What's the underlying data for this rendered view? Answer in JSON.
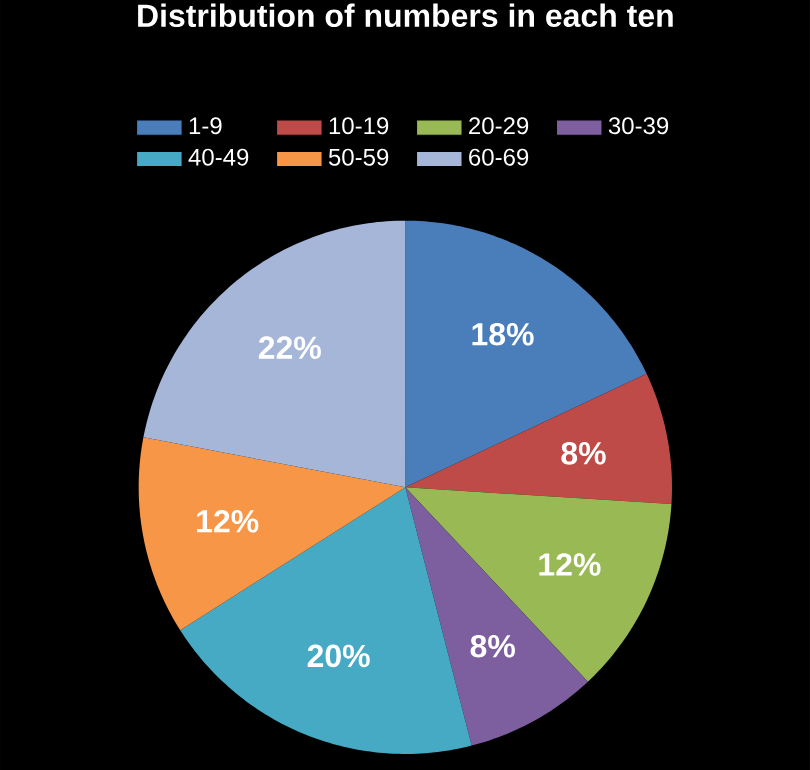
{
  "chart_data": {
    "type": "pie",
    "title": "Distribution of numbers in each ten",
    "categories": [
      "1-9",
      "10-19",
      "20-29",
      "30-39",
      "40-49",
      "50-59",
      "60-69"
    ],
    "values": [
      18,
      8,
      12,
      8,
      20,
      12,
      22
    ],
    "value_labels": [
      "18%",
      "8%",
      "12%",
      "8%",
      "20%",
      "12%",
      "22%"
    ],
    "colors": [
      "#4a7ebb",
      "#be4b48",
      "#98b954",
      "#7d5fa0",
      "#46aac5",
      "#f79646",
      "#a5b6d8"
    ],
    "legend": "top"
  }
}
